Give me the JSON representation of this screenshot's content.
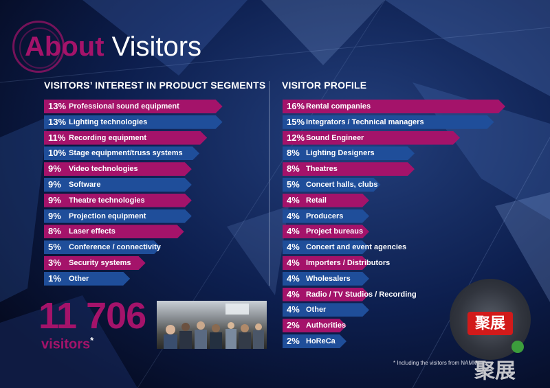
{
  "title": {
    "part1": "About",
    "part2": " Visitors"
  },
  "colors": {
    "magenta": "#a4136a",
    "blue": "#1f4e9a",
    "background": "#07122e"
  },
  "chart_data": [
    {
      "type": "bar",
      "title": "VISITORS’ INTEREST IN PRODUCT SEGMENTS",
      "categories": [
        "Professional sound equipment",
        "Lighting technologies",
        "Recording equipment",
        "Stage equipment/truss systems",
        "Video technologies",
        "Software",
        "Theatre technologies",
        "Projection equipment",
        "Laser effects",
        "Conference / connectivity",
        "Security systems",
        "Other"
      ],
      "values": [
        13,
        13,
        11,
        10,
        9,
        9,
        9,
        9,
        8,
        5,
        3,
        1
      ],
      "labels": [
        "13%",
        "13%",
        "11%",
        "10%",
        "9%",
        "9%",
        "9%",
        "9%",
        "8%",
        "5%",
        "3%",
        "1%"
      ],
      "colors": [
        "magenta",
        "blue",
        "magenta",
        "blue",
        "magenta",
        "blue",
        "magenta",
        "blue",
        "magenta",
        "blue",
        "magenta",
        "blue"
      ],
      "unit": "%"
    },
    {
      "type": "bar",
      "title": "VISITOR PROFILE",
      "categories": [
        "Rental companies",
        "Integrators / Technical managers",
        "Sound Engineer",
        "Lighting Designers",
        "Theatres",
        "Concert halls, clubs",
        "Retail",
        "Producers",
        "Project bureaus",
        "Concert and event agencies",
        "Importers / Distributors",
        "Wholesalers",
        "Radio / TV Studios / Recording",
        "Other",
        "Authorities",
        "HoReCa"
      ],
      "values": [
        16,
        15,
        12,
        8,
        8,
        5,
        4,
        4,
        4,
        4,
        4,
        4,
        4,
        4,
        2,
        2
      ],
      "labels": [
        "16%",
        "15%",
        "12%",
        "8%",
        "8%",
        "5%",
        "4%",
        "4%",
        "4%",
        "4%",
        "4%",
        "4%",
        "4%",
        "4%",
        "2%",
        "2%"
      ],
      "colors": [
        "magenta",
        "blue",
        "magenta",
        "blue",
        "magenta",
        "blue",
        "magenta",
        "blue",
        "magenta",
        "blue",
        "magenta",
        "blue",
        "magenta",
        "blue",
        "magenta",
        "blue"
      ],
      "unit": "%"
    }
  ],
  "total": {
    "number": "11 706",
    "label": "visitors",
    "mark": "*"
  },
  "footnote": "* Including the visitors from NAMM",
  "logo": {
    "badge_text": "聚展",
    "watermark": "聚展"
  }
}
